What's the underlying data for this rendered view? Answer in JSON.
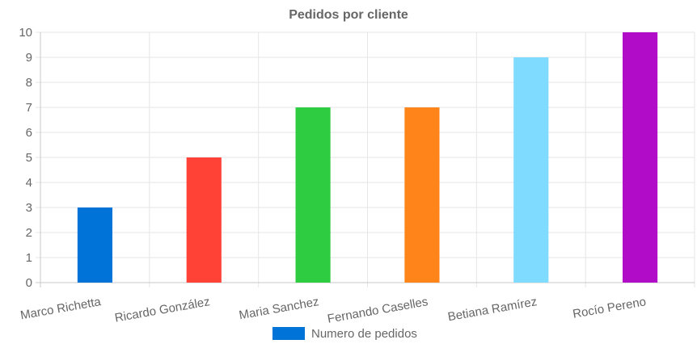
{
  "chart_data": {
    "type": "bar",
    "title": "Pedidos por cliente",
    "categories": [
      "Marco Richetta",
      "Ricardo González",
      "Maria Sanchez",
      "Fernando Caselles",
      "Betiana Ramírez",
      "Rocío Pereno"
    ],
    "series": [
      {
        "name": "Numero de pedidos",
        "values": [
          3,
          5,
          7,
          7,
          9,
          10
        ],
        "colors": [
          "#0073d9",
          "#ff4136",
          "#2ecc40",
          "#ff851b",
          "#7fdbff",
          "#b10dc9"
        ]
      }
    ],
    "legend_color": "#0073d9",
    "ylim": [
      0,
      10
    ],
    "yticks": [
      0,
      1,
      2,
      3,
      4,
      5,
      6,
      7,
      8,
      9,
      10
    ],
    "grid": true,
    "legend_position": "bottom"
  }
}
